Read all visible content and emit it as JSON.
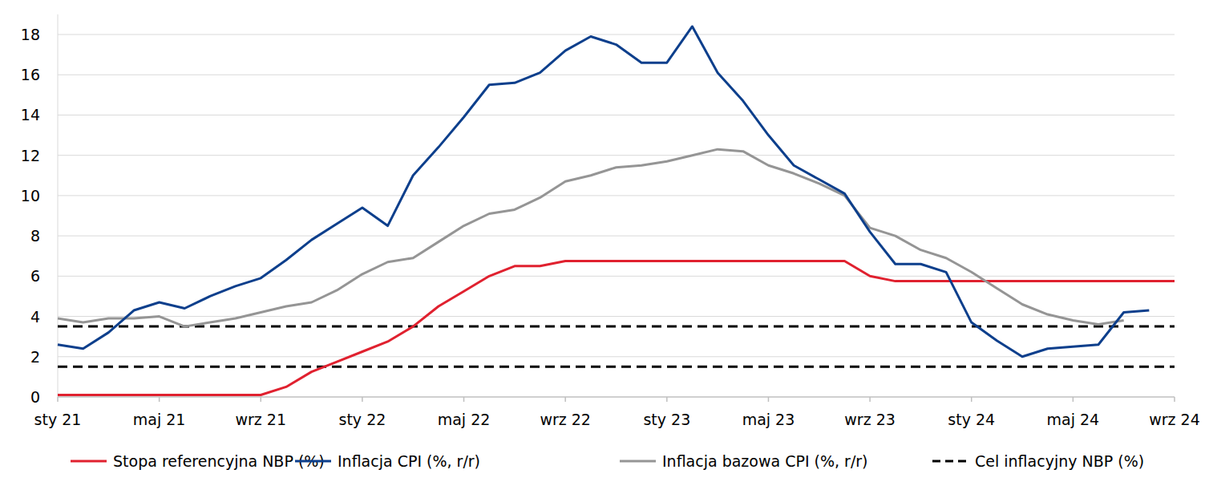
{
  "chart_data": {
    "type": "line",
    "categories": [
      "sty 21",
      null,
      null,
      null,
      "maj 21",
      null,
      null,
      null,
      "wrz 21",
      null,
      null,
      null,
      "sty 22",
      null,
      null,
      null,
      "maj 22",
      null,
      null,
      null,
      "wrz 22",
      null,
      null,
      null,
      "sty 23",
      null,
      null,
      null,
      "maj 23",
      null,
      null,
      null,
      "wrz 23",
      null,
      null,
      null,
      "sty 24",
      null,
      null,
      null,
      "maj 24",
      null,
      null,
      null,
      "wrz 24"
    ],
    "ylim": [
      0,
      19
    ],
    "yticks": [
      0,
      2,
      4,
      6,
      8,
      10,
      12,
      14,
      16,
      18
    ],
    "grid": true,
    "legend": "bottom",
    "series": [
      {
        "name": "Stopa referencyjna NBP (%)",
        "color": "#e0212f",
        "line_style": "solid",
        "values": [
          0.1,
          0.1,
          0.1,
          0.1,
          0.1,
          0.1,
          0.1,
          0.1,
          0.1,
          0.5,
          1.25,
          1.75,
          2.25,
          2.75,
          3.5,
          4.5,
          5.25,
          6.0,
          6.5,
          6.5,
          6.75,
          6.75,
          6.75,
          6.75,
          6.75,
          6.75,
          6.75,
          6.75,
          6.75,
          6.75,
          6.75,
          6.75,
          6.0,
          5.75,
          5.75,
          5.75,
          5.75,
          5.75,
          5.75,
          5.75,
          5.75,
          5.75,
          5.75,
          5.75,
          5.75
        ]
      },
      {
        "name": "Inflacja CPI (%, r/r)",
        "color": "#0d3f8c",
        "line_style": "solid",
        "values": [
          2.6,
          2.4,
          3.2,
          4.3,
          4.7,
          4.4,
          5.0,
          5.5,
          5.9,
          6.8,
          7.8,
          8.6,
          9.4,
          8.5,
          11.0,
          12.4,
          13.9,
          15.5,
          15.6,
          16.1,
          17.2,
          17.9,
          17.5,
          16.6,
          16.6,
          18.4,
          16.1,
          14.7,
          13.0,
          11.5,
          10.8,
          10.1,
          8.2,
          6.6,
          6.6,
          6.2,
          3.7,
          2.8,
          2.0,
          2.4,
          2.5,
          2.6,
          4.2,
          4.3,
          null
        ]
      },
      {
        "name": "Inflacja bazowa CPI (%, r/r)",
        "color": "#959595",
        "line_style": "solid",
        "values": [
          3.9,
          3.7,
          3.9,
          3.9,
          4.0,
          3.5,
          3.7,
          3.9,
          4.2,
          4.5,
          4.7,
          5.3,
          6.1,
          6.7,
          6.9,
          7.7,
          8.5,
          9.1,
          9.3,
          9.9,
          10.7,
          11.0,
          11.4,
          11.5,
          11.7,
          12.0,
          12.3,
          12.2,
          11.5,
          11.1,
          10.6,
          10.0,
          8.4,
          8.0,
          7.3,
          6.9,
          6.2,
          5.4,
          4.6,
          4.1,
          3.8,
          3.6,
          3.8,
          null,
          null
        ]
      },
      {
        "name": "Cel inflacyjny NBP (%)",
        "color": "#000000",
        "line_style": "dashed",
        "values": [
          3.5,
          3.5,
          3.5,
          3.5,
          3.5,
          3.5,
          3.5,
          3.5,
          3.5,
          3.5,
          3.5,
          3.5,
          3.5,
          3.5,
          3.5,
          3.5,
          3.5,
          3.5,
          3.5,
          3.5,
          3.5,
          3.5,
          3.5,
          3.5,
          3.5,
          3.5,
          3.5,
          3.5,
          3.5,
          3.5,
          3.5,
          3.5,
          3.5,
          3.5,
          3.5,
          3.5,
          3.5,
          3.5,
          3.5,
          3.5,
          3.5,
          3.5,
          3.5,
          3.5,
          3.5
        ],
        "lower": [
          1.5,
          1.5,
          1.5,
          1.5,
          1.5,
          1.5,
          1.5,
          1.5,
          1.5,
          1.5,
          1.5,
          1.5,
          1.5,
          1.5,
          1.5,
          1.5,
          1.5,
          1.5,
          1.5,
          1.5,
          1.5,
          1.5,
          1.5,
          1.5,
          1.5,
          1.5,
          1.5,
          1.5,
          1.5,
          1.5,
          1.5,
          1.5,
          1.5,
          1.5,
          1.5,
          1.5,
          1.5,
          1.5,
          1.5,
          1.5,
          1.5,
          1.5,
          1.5,
          1.5,
          1.5
        ]
      }
    ]
  }
}
